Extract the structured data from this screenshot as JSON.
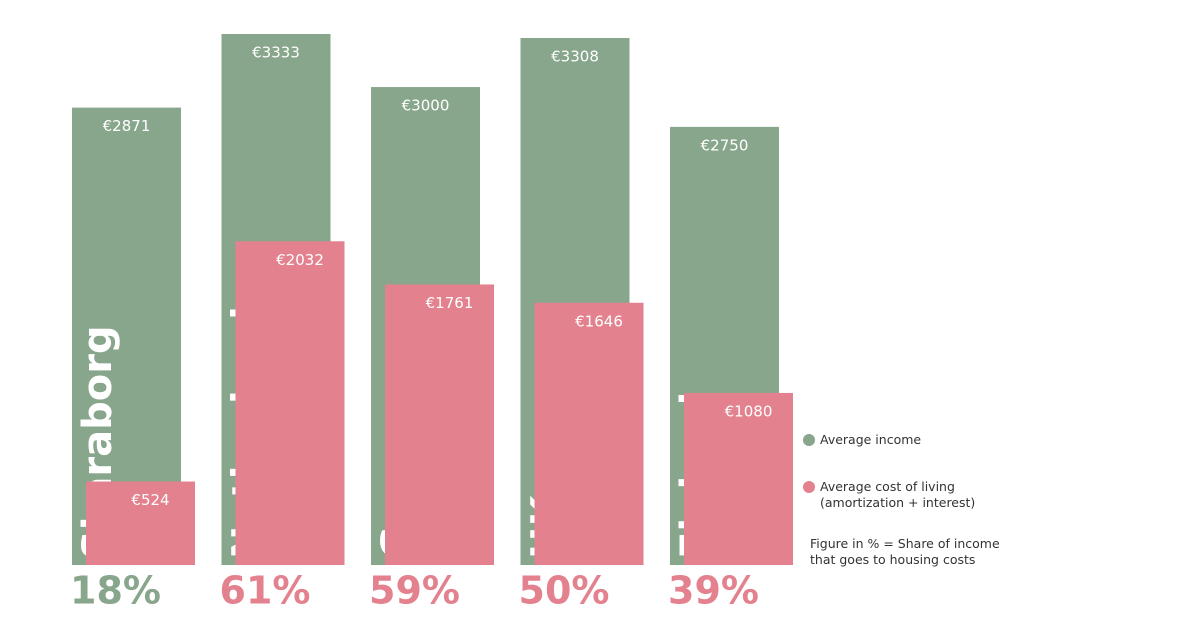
{
  "chart_data": {
    "type": "bar",
    "categories": [
      "Skaraborg",
      "Netherlands",
      "Germany",
      "UK",
      "Finland"
    ],
    "series": [
      {
        "name": "Average income",
        "color": "#88a68c",
        "values": [
          2871,
          3333,
          3000,
          3308,
          2750
        ],
        "value_labels": [
          "€2871",
          "€3333",
          "€3000",
          "€3308",
          "€2750"
        ]
      },
      {
        "name": "Average cost of living (amortization + interest)",
        "color": "#e3828e",
        "values": [
          524,
          2032,
          1761,
          1646,
          1080
        ],
        "value_labels": [
          "€524",
          "€2032",
          "€1761",
          "€1646",
          "€1080"
        ]
      }
    ],
    "shares": {
      "values": [
        18,
        61,
        59,
        50,
        39
      ],
      "value_labels": [
        "18%",
        "61%",
        "59%",
        "50%",
        "39%"
      ],
      "colors": [
        "#88a68c",
        "#e3828e",
        "#e3828e",
        "#e3828e",
        "#e3828e"
      ]
    },
    "note": "Figure in % = Share of income that goes to housing costs"
  }
}
